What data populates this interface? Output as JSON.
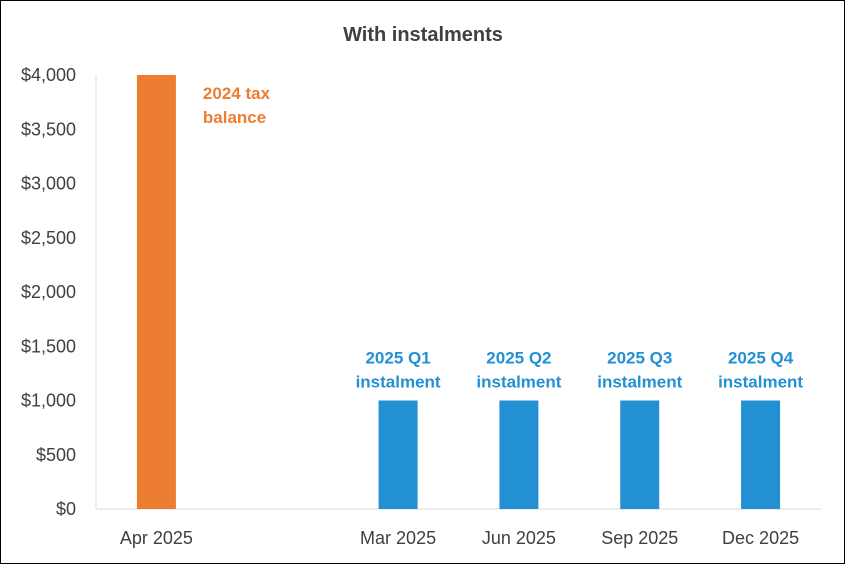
{
  "chart_data": {
    "type": "bar",
    "title": "With instalments",
    "xlabel": "",
    "ylabel": "",
    "categories": [
      "Apr 2025",
      "",
      "Mar 2025",
      "Jun 2025",
      "Sep 2025",
      "Dec 2025"
    ],
    "values": [
      4000,
      null,
      1000,
      1000,
      1000,
      1000
    ],
    "bar_colors": [
      "#ED7D31",
      null,
      "#2390D3",
      "#2390D3",
      "#2390D3",
      "#2390D3"
    ],
    "ylim": [
      0,
      4000
    ],
    "y_ticks": [
      0,
      500,
      1000,
      1500,
      2000,
      2500,
      3000,
      3500,
      4000
    ],
    "y_tick_labels": [
      "$0",
      "$500",
      "$1,000",
      "$1,500",
      "$2,000",
      "$2,500",
      "$3,000",
      "$3,500",
      "$4,000"
    ],
    "grid": false,
    "legend": "none",
    "annotations": [
      {
        "category": "Apr 2025",
        "lines": [
          "2024 tax",
          "balance"
        ],
        "color": "#ED7D31"
      },
      {
        "category": "Mar 2025",
        "lines": [
          "2025 Q1",
          "instalment"
        ],
        "color": "#2390D3"
      },
      {
        "category": "Jun 2025",
        "lines": [
          "2025 Q2",
          "instalment"
        ],
        "color": "#2390D3"
      },
      {
        "category": "Sep 2025",
        "lines": [
          "2025 Q3",
          "instalment"
        ],
        "color": "#2390D3"
      },
      {
        "category": "Dec 2025",
        "lines": [
          "2025 Q4",
          "instalment"
        ],
        "color": "#2390D3"
      }
    ]
  },
  "colors": {
    "axis": "#D9D9D9",
    "text": "#404040",
    "border": "#000000"
  }
}
